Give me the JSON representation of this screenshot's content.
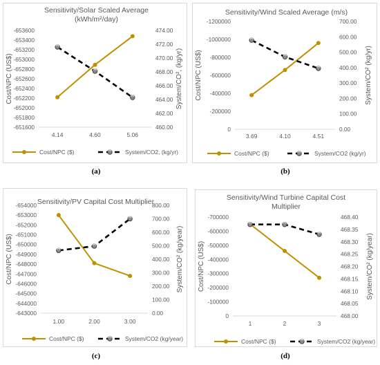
{
  "captions": [
    "(a)",
    "(b)",
    "(c)",
    "(d)"
  ],
  "chart_data": [
    {
      "type": "line",
      "title": "Sensitivity/Solar Scaled Average (kWh/m²/day)",
      "title_lines": [
        "Sensitivity/Solar Scaled Average",
        "(kWh/m²/day)"
      ],
      "xlabel": "",
      "ylabel": "Cost/NPC (US$)",
      "y2label": "System/CO², (kg/yr)",
      "categories": [
        "4.14",
        "4.60",
        "5.06"
      ],
      "ylim": [
        -651600,
        -653600
      ],
      "yticks": [
        "-653600",
        "-653400",
        "-653200",
        "-653000",
        "-652800",
        "-652600",
        "-652400",
        "-652200",
        "-652000",
        "-651800",
        "-651600"
      ],
      "y2lim": [
        460,
        474
      ],
      "y2ticks": [
        "474.00",
        "472.00",
        "470.00",
        "468.00",
        "466.00",
        "464.00",
        "462.00",
        "460.00"
      ],
      "series": [
        {
          "name": "Cost/NPC ($)",
          "axis": "left",
          "style": "solid",
          "color": "#bf9000",
          "values": [
            -652220,
            -652890,
            -653480
          ]
        },
        {
          "name": "System/CO2, (kg/yr)",
          "axis": "right",
          "style": "dashed",
          "color": "#000000",
          "values": [
            471.6,
            468.1,
            464.3
          ]
        }
      ],
      "legend": "bottom",
      "grid": false
    },
    {
      "type": "line",
      "title": "Sensitivity/Wind Scaled Average (m/s)",
      "title_lines": [
        "Sensitivity/Wind Scaled Average (m/s)"
      ],
      "xlabel": "",
      "ylabel": "Cost/NPC (US$)",
      "y2label": "System/CO² (kg/yr)",
      "categories": [
        "3.69",
        "4.10",
        "4.51"
      ],
      "ylim": [
        0,
        -1200000
      ],
      "yticks": [
        "-1200000",
        "-1000000",
        "-800000",
        "-600000",
        "-400000",
        "-200000",
        "0"
      ],
      "y2lim": [
        0,
        700
      ],
      "y2ticks": [
        "700.00",
        "600.00",
        "500.00",
        "400.00",
        "300.00",
        "200.00",
        "100.00",
        "0.00"
      ],
      "series": [
        {
          "name": "Cost/NPC ($)",
          "axis": "left",
          "style": "solid",
          "color": "#bf9000",
          "values": [
            -380000,
            -660000,
            -960000
          ]
        },
        {
          "name": "System/CO2 (kg/yr)",
          "axis": "right",
          "style": "dashed",
          "color": "#000000",
          "values": [
            578,
            470,
            395
          ]
        }
      ],
      "legend": "bottom",
      "grid": false
    },
    {
      "type": "line",
      "title": "Sensitivity/PV Capital Cost Multiplier",
      "title_lines": [
        "Sensitivity/PV Capital Cost Multiplier"
      ],
      "xlabel": "",
      "ylabel": "Cost/NPC (US$)",
      "y2label": "System/CO² (kg/year)",
      "categories": [
        "1.00",
        "2.00",
        "3.00"
      ],
      "ylim": [
        -643000,
        -654000
      ],
      "yticks": [
        "-654000",
        "-653000",
        "-652000",
        "-651000",
        "-650000",
        "-649000",
        "-648000",
        "-647000",
        "-646000",
        "-645000",
        "-644000",
        "-643000"
      ],
      "y2lim": [
        0,
        800
      ],
      "y2ticks": [
        "800.00",
        "700.00",
        "600.00",
        "500.00",
        "400.00",
        "300.00",
        "200.00",
        "100.00",
        "0.00"
      ],
      "series": [
        {
          "name": "Cost/NPC ($)",
          "axis": "left",
          "style": "solid",
          "color": "#bf9000",
          "values": [
            -653000,
            -648100,
            -646800
          ]
        },
        {
          "name": "System/CO2 (kg/year)",
          "axis": "right",
          "style": "dashed",
          "color": "#000000",
          "values": [
            465,
            497,
            700
          ]
        }
      ],
      "legend": "bottom",
      "grid": false
    },
    {
      "type": "line",
      "title": "Sensitivity/Wind Turbine Capital Cost Multiplier",
      "title_lines": [
        "Sensitivity/Wind Turbine Capital Cost",
        "Multiplier"
      ],
      "xlabel": "",
      "ylabel": "Cost/NPC (US$)",
      "y2label": "System/CO² (kg/year)",
      "categories": [
        "1",
        "2",
        "3"
      ],
      "ylim": [
        0,
        -700000
      ],
      "yticks": [
        "-700000",
        "-600000",
        "-500000",
        "-400000",
        "-300000",
        "-200000",
        "-100000",
        "0"
      ],
      "y2lim": [
        468.0,
        468.4
      ],
      "y2ticks": [
        "468.40",
        "468.35",
        "468.30",
        "468.25",
        "468.20",
        "468.15",
        "468.10",
        "468.05",
        "468.00"
      ],
      "series": [
        {
          "name": "Cost/NPC ($)",
          "axis": "left",
          "style": "solid",
          "color": "#bf9000",
          "values": [
            -650000,
            -460000,
            -270000
          ]
        },
        {
          "name": "System/CO2 (kg/year)",
          "axis": "right",
          "style": "dashed",
          "color": "#000000",
          "values": [
            468.37,
            468.37,
            468.33
          ]
        }
      ],
      "legend": "bottom",
      "grid": false
    }
  ]
}
